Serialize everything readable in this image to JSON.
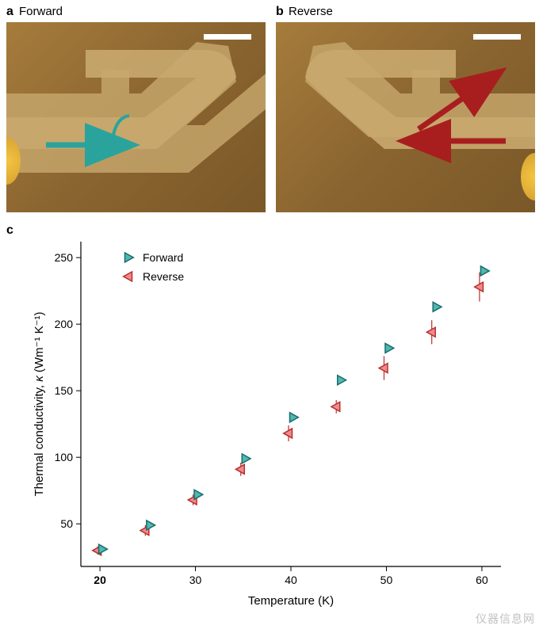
{
  "panels": {
    "a": {
      "label": "a",
      "sublabel": "Forward"
    },
    "b": {
      "label": "b",
      "sublabel": "Reverse"
    },
    "c": {
      "label": "c"
    }
  },
  "microscopy": {
    "background_gradient": [
      "#a67c3c",
      "#8b6530",
      "#7a5828"
    ],
    "device_color": "#b8935a",
    "scalebar_color": "#ffffff",
    "electrode_color": "#f5c542",
    "forward_arrow_color": "#2aa39c",
    "reverse_arrow_color": "#a81e1e"
  },
  "chart": {
    "type": "scatter",
    "xlabel": "Temperature (K)",
    "ylabel": "Thermal conductivity, κ (Wm⁻¹ K⁻¹)",
    "xlim": [
      18,
      62
    ],
    "ylim": [
      18,
      262
    ],
    "xticks": [
      20,
      30,
      40,
      50,
      60
    ],
    "yticks": [
      50,
      100,
      150,
      200,
      250
    ],
    "xtick_labels": [
      "20",
      "30",
      "40",
      "50",
      "60"
    ],
    "ytick_labels": [
      "50",
      "100",
      "150",
      "200",
      "250"
    ],
    "xtick_bold_first": true,
    "background_color": "#ffffff",
    "axis_color": "#000000",
    "label_fontsize": 15,
    "tick_fontsize": 14,
    "legend": {
      "entries": [
        "Forward",
        "Reverse"
      ],
      "position": "upper-left",
      "fontsize": 14
    },
    "series": {
      "forward": {
        "marker": "triangle-right",
        "fill_color": "#4fb8b0",
        "edge_color": "#1b6b6b",
        "marker_size": 14,
        "x": [
          20,
          25,
          30,
          35,
          40,
          45,
          50,
          55,
          60
        ],
        "y": [
          31,
          49,
          72,
          99,
          130,
          158,
          182,
          213,
          240
        ],
        "yerr": [
          2,
          3,
          3,
          4,
          5,
          5,
          6,
          7,
          8
        ]
      },
      "reverse": {
        "marker": "triangle-left",
        "fill_color": "#f08a8a",
        "edge_color": "#b82e2e",
        "marker_size": 14,
        "x": [
          20,
          25,
          30,
          35,
          40,
          45,
          50,
          55,
          60
        ],
        "y": [
          30,
          45,
          68,
          91,
          118,
          138,
          167,
          194,
          228
        ],
        "yerr": [
          3,
          4,
          4,
          5,
          6,
          5,
          9,
          9,
          11
        ]
      }
    }
  },
  "watermark": "仪器信息网"
}
